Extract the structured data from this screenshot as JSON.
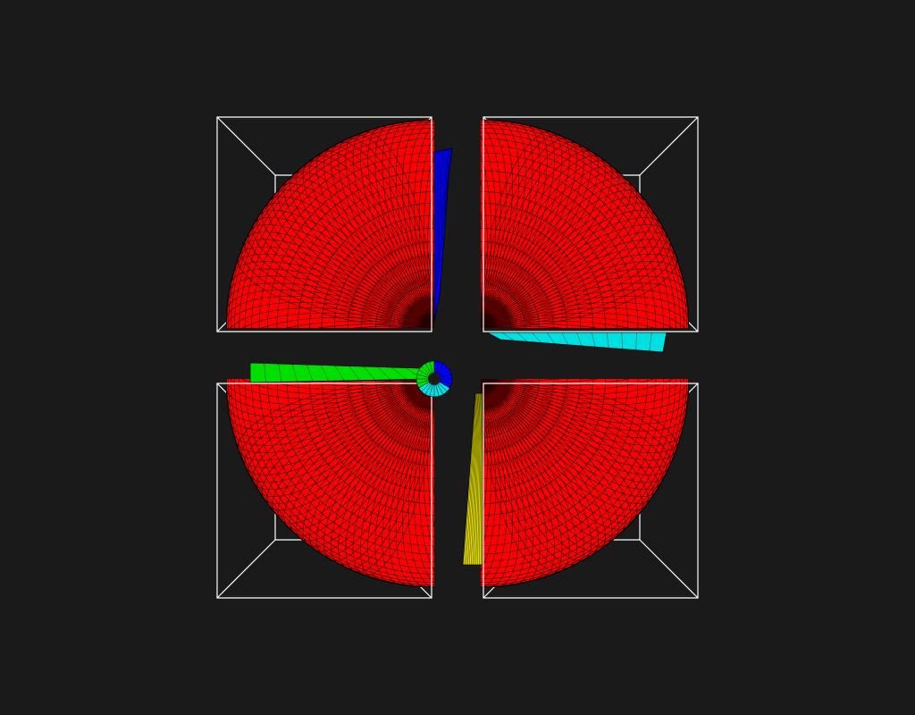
{
  "viewer": {
    "background": "#1a1a1a",
    "wireframe_color": "#ffffff",
    "mesh_line_color": "#000000"
  },
  "quadrants": [
    {
      "name": "top-left",
      "fill": "#ff0000",
      "band_color": "#0000ff"
    },
    {
      "name": "top-right",
      "fill": "#ff0000",
      "band_color": "#00e0e0"
    },
    {
      "name": "bottom-left",
      "fill": "#ff0000",
      "band_color": "#00e000"
    },
    {
      "name": "bottom-right",
      "fill": "#ff0000",
      "band_color": "#e8e000"
    }
  ],
  "hub_colors": [
    "#00e0e0",
    "#0000ff",
    "#00e000"
  ]
}
